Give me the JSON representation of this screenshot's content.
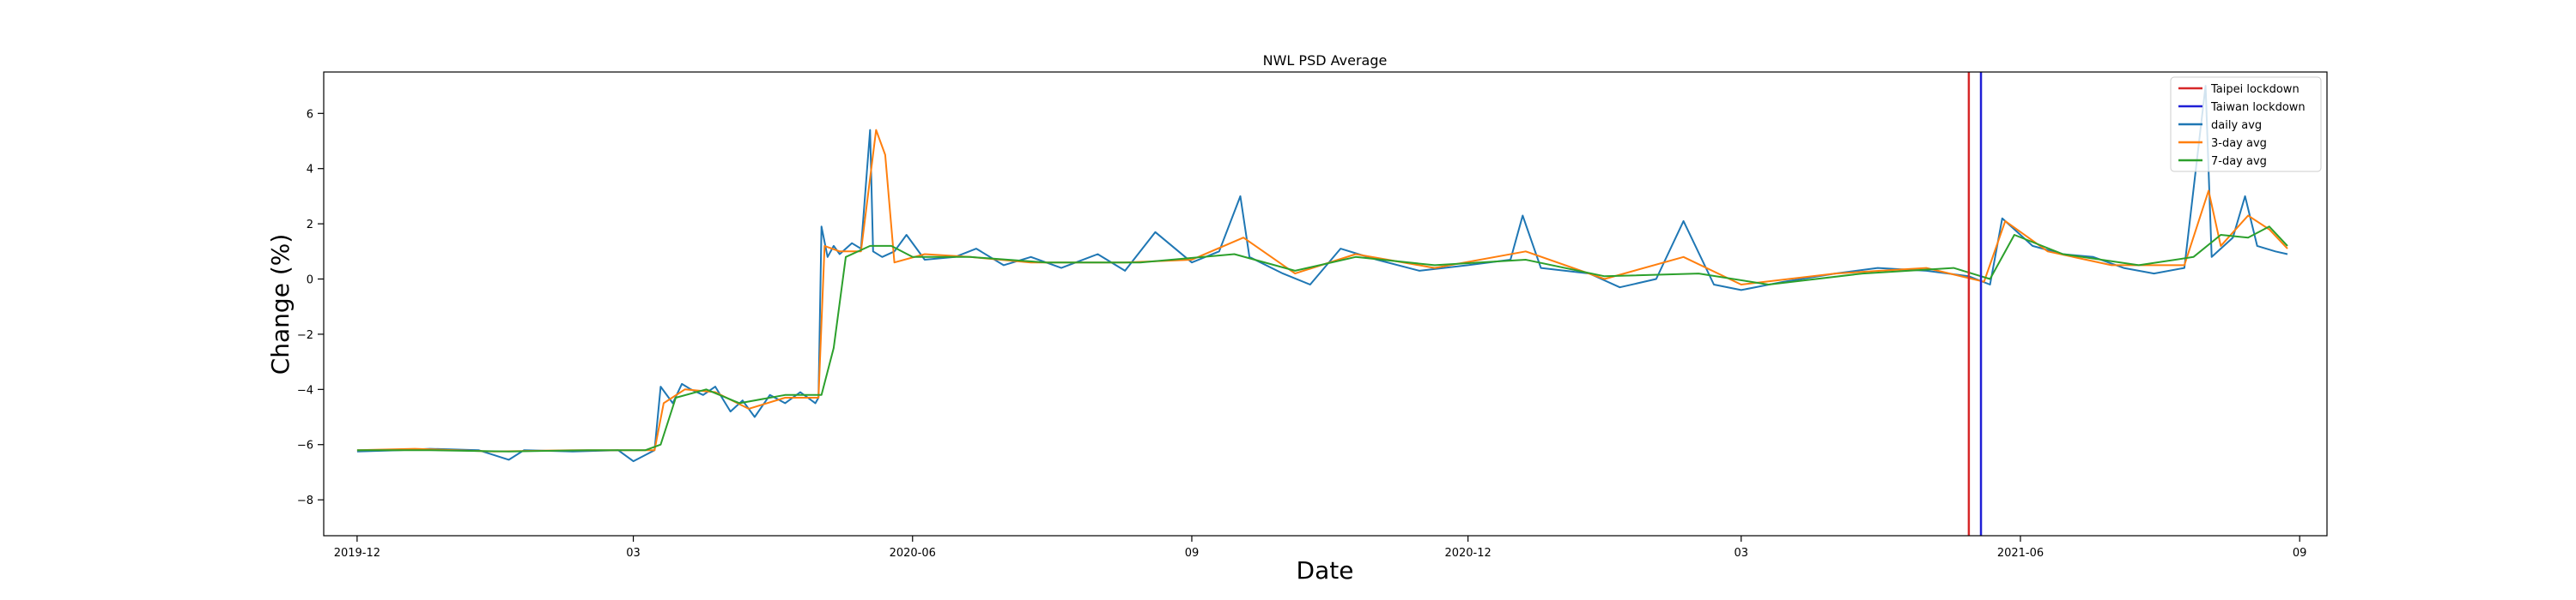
{
  "chart_data": {
    "type": "line",
    "title": "NWL PSD Average",
    "xlabel": "Date",
    "ylabel": "Change (%)",
    "x_type": "date",
    "xlim": [
      "2019-11-20",
      "2021-09-10"
    ],
    "ylim": [
      -9.3,
      7.5
    ],
    "x_ticks": [
      {
        "date": "2019-12-01",
        "label": "2019-12"
      },
      {
        "date": "2020-03-01",
        "label": "03"
      },
      {
        "date": "2020-06-01",
        "label": "2020-06"
      },
      {
        "date": "2020-09-01",
        "label": "09"
      },
      {
        "date": "2020-12-01",
        "label": "2020-12"
      },
      {
        "date": "2021-03-01",
        "label": "03"
      },
      {
        "date": "2021-06-01",
        "label": "2021-06"
      },
      {
        "date": "2021-09-01",
        "label": "09"
      }
    ],
    "y_ticks": [
      -8,
      -6,
      -4,
      -2,
      0,
      2,
      4,
      6
    ],
    "legend_position": "top-right",
    "vlines": [
      {
        "name": "Taipei lockdown",
        "date": "2021-05-15",
        "color": "#d62728"
      },
      {
        "name": "Taiwan lockdown",
        "date": "2021-05-19",
        "color": "#1f1fd6"
      }
    ],
    "series": [
      {
        "name": "daily avg",
        "color": "#1f77b4",
        "points": [
          [
            "2019-12-01",
            -6.25
          ],
          [
            "2019-12-15",
            -6.2
          ],
          [
            "2019-12-25",
            -6.15
          ],
          [
            "2020-01-10",
            -6.2
          ],
          [
            "2020-01-20",
            -6.55
          ],
          [
            "2020-01-25",
            -6.2
          ],
          [
            "2020-02-10",
            -6.25
          ],
          [
            "2020-02-25",
            -6.2
          ],
          [
            "2020-03-01",
            -6.6
          ],
          [
            "2020-03-08",
            -6.2
          ],
          [
            "2020-03-10",
            -3.9
          ],
          [
            "2020-03-14",
            -4.5
          ],
          [
            "2020-03-17",
            -3.8
          ],
          [
            "2020-03-20",
            -4.0
          ],
          [
            "2020-03-24",
            -4.2
          ],
          [
            "2020-03-28",
            -3.9
          ],
          [
            "2020-04-02",
            -4.8
          ],
          [
            "2020-04-06",
            -4.4
          ],
          [
            "2020-04-10",
            -5.0
          ],
          [
            "2020-04-15",
            -4.2
          ],
          [
            "2020-04-20",
            -4.5
          ],
          [
            "2020-04-25",
            -4.1
          ],
          [
            "2020-04-30",
            -4.5
          ],
          [
            "2020-05-01",
            -4.3
          ],
          [
            "2020-05-02",
            1.9
          ],
          [
            "2020-05-04",
            0.8
          ],
          [
            "2020-05-06",
            1.2
          ],
          [
            "2020-05-08",
            0.9
          ],
          [
            "2020-05-12",
            1.3
          ],
          [
            "2020-05-15",
            1.1
          ],
          [
            "2020-05-18",
            5.4
          ],
          [
            "2020-05-19",
            1.0
          ],
          [
            "2020-05-22",
            0.8
          ],
          [
            "2020-05-26",
            1.0
          ],
          [
            "2020-05-30",
            1.6
          ],
          [
            "2020-06-05",
            0.7
          ],
          [
            "2020-06-15",
            0.8
          ],
          [
            "2020-06-22",
            1.1
          ],
          [
            "2020-07-01",
            0.5
          ],
          [
            "2020-07-10",
            0.8
          ],
          [
            "2020-07-20",
            0.4
          ],
          [
            "2020-08-01",
            0.9
          ],
          [
            "2020-08-10",
            0.3
          ],
          [
            "2020-08-20",
            1.7
          ],
          [
            "2020-09-01",
            0.6
          ],
          [
            "2020-09-10",
            1.0
          ],
          [
            "2020-09-17",
            3.0
          ],
          [
            "2020-09-20",
            0.8
          ],
          [
            "2020-10-01",
            0.2
          ],
          [
            "2020-10-10",
            -0.2
          ],
          [
            "2020-10-20",
            1.1
          ],
          [
            "2020-11-01",
            0.7
          ],
          [
            "2020-11-15",
            0.3
          ],
          [
            "2020-12-01",
            0.5
          ],
          [
            "2020-12-15",
            0.7
          ],
          [
            "2020-12-19",
            2.3
          ],
          [
            "2020-12-25",
            0.4
          ],
          [
            "2021-01-10",
            0.2
          ],
          [
            "2021-01-20",
            -0.3
          ],
          [
            "2021-02-01",
            0.0
          ],
          [
            "2021-02-10",
            2.1
          ],
          [
            "2021-02-20",
            -0.2
          ],
          [
            "2021-03-01",
            -0.4
          ],
          [
            "2021-03-15",
            -0.1
          ],
          [
            "2021-04-01",
            0.2
          ],
          [
            "2021-04-15",
            0.4
          ],
          [
            "2021-05-01",
            0.3
          ],
          [
            "2021-05-15",
            0.1
          ],
          [
            "2021-05-22",
            -0.2
          ],
          [
            "2021-05-26",
            2.2
          ],
          [
            "2021-06-05",
            1.2
          ],
          [
            "2021-06-15",
            0.9
          ],
          [
            "2021-06-25",
            0.8
          ],
          [
            "2021-07-05",
            0.4
          ],
          [
            "2021-07-15",
            0.2
          ],
          [
            "2021-07-25",
            0.4
          ],
          [
            "2021-08-01",
            7.0
          ],
          [
            "2021-08-03",
            0.8
          ],
          [
            "2021-08-10",
            1.5
          ],
          [
            "2021-08-14",
            3.0
          ],
          [
            "2021-08-18",
            1.2
          ],
          [
            "2021-08-24",
            1.0
          ],
          [
            "2021-08-28",
            0.9
          ]
        ]
      },
      {
        "name": "3-day avg",
        "color": "#ff7f0e",
        "points": [
          [
            "2019-12-01",
            -6.2
          ],
          [
            "2019-12-20",
            -6.15
          ],
          [
            "2020-01-15",
            -6.25
          ],
          [
            "2020-02-10",
            -6.2
          ],
          [
            "2020-03-01",
            -6.2
          ],
          [
            "2020-03-08",
            -6.2
          ],
          [
            "2020-03-11",
            -4.5
          ],
          [
            "2020-03-18",
            -4.0
          ],
          [
            "2020-03-28",
            -4.1
          ],
          [
            "2020-04-08",
            -4.7
          ],
          [
            "2020-04-20",
            -4.3
          ],
          [
            "2020-05-01",
            -4.3
          ],
          [
            "2020-05-03",
            1.2
          ],
          [
            "2020-05-08",
            1.0
          ],
          [
            "2020-05-15",
            1.0
          ],
          [
            "2020-05-20",
            5.4
          ],
          [
            "2020-05-23",
            4.5
          ],
          [
            "2020-05-26",
            0.6
          ],
          [
            "2020-06-05",
            0.9
          ],
          [
            "2020-06-20",
            0.8
          ],
          [
            "2020-07-10",
            0.6
          ],
          [
            "2020-08-10",
            0.6
          ],
          [
            "2020-09-01",
            0.7
          ],
          [
            "2020-09-18",
            1.5
          ],
          [
            "2020-10-05",
            0.2
          ],
          [
            "2020-10-25",
            0.9
          ],
          [
            "2020-11-20",
            0.4
          ],
          [
            "2020-12-20",
            1.0
          ],
          [
            "2021-01-15",
            0.0
          ],
          [
            "2021-02-10",
            0.8
          ],
          [
            "2021-03-01",
            -0.2
          ],
          [
            "2021-04-01",
            0.2
          ],
          [
            "2021-05-01",
            0.4
          ],
          [
            "2021-05-20",
            -0.1
          ],
          [
            "2021-05-27",
            2.1
          ],
          [
            "2021-06-10",
            1.0
          ],
          [
            "2021-07-01",
            0.5
          ],
          [
            "2021-07-25",
            0.5
          ],
          [
            "2021-08-02",
            3.2
          ],
          [
            "2021-08-06",
            1.2
          ],
          [
            "2021-08-15",
            2.3
          ],
          [
            "2021-08-22",
            1.8
          ],
          [
            "2021-08-28",
            1.1
          ]
        ]
      },
      {
        "name": "7-day avg",
        "color": "#2ca02c",
        "points": [
          [
            "2019-12-01",
            -6.2
          ],
          [
            "2019-12-25",
            -6.2
          ],
          [
            "2020-01-20",
            -6.25
          ],
          [
            "2020-02-15",
            -6.2
          ],
          [
            "2020-03-05",
            -6.2
          ],
          [
            "2020-03-10",
            -6.0
          ],
          [
            "2020-03-15",
            -4.3
          ],
          [
            "2020-03-25",
            -4.0
          ],
          [
            "2020-04-05",
            -4.5
          ],
          [
            "2020-04-20",
            -4.2
          ],
          [
            "2020-05-02",
            -4.2
          ],
          [
            "2020-05-06",
            -2.5
          ],
          [
            "2020-05-10",
            0.8
          ],
          [
            "2020-05-18",
            1.2
          ],
          [
            "2020-05-25",
            1.2
          ],
          [
            "2020-06-01",
            0.8
          ],
          [
            "2020-06-20",
            0.8
          ],
          [
            "2020-07-15",
            0.6
          ],
          [
            "2020-08-15",
            0.6
          ],
          [
            "2020-09-15",
            0.9
          ],
          [
            "2020-10-05",
            0.3
          ],
          [
            "2020-10-25",
            0.8
          ],
          [
            "2020-11-20",
            0.5
          ],
          [
            "2020-12-20",
            0.7
          ],
          [
            "2021-01-15",
            0.1
          ],
          [
            "2021-02-15",
            0.2
          ],
          [
            "2021-03-10",
            -0.2
          ],
          [
            "2021-04-10",
            0.2
          ],
          [
            "2021-05-10",
            0.4
          ],
          [
            "2021-05-22",
            0.0
          ],
          [
            "2021-05-30",
            1.6
          ],
          [
            "2021-06-15",
            0.9
          ],
          [
            "2021-07-10",
            0.5
          ],
          [
            "2021-07-28",
            0.8
          ],
          [
            "2021-08-06",
            1.6
          ],
          [
            "2021-08-15",
            1.5
          ],
          [
            "2021-08-22",
            1.9
          ],
          [
            "2021-08-28",
            1.2
          ]
        ]
      }
    ]
  }
}
